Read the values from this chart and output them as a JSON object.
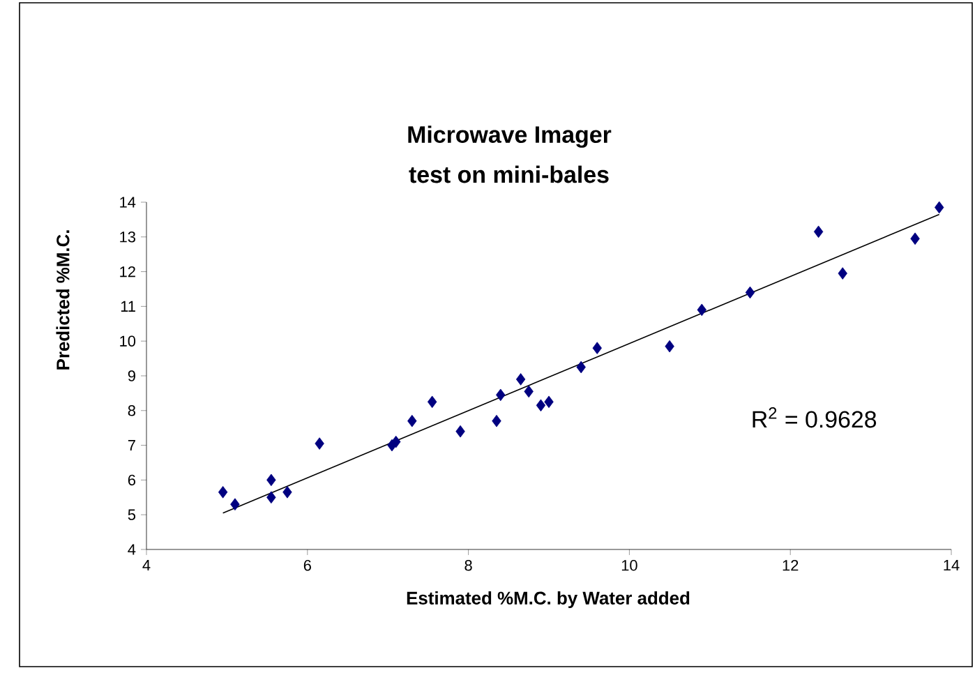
{
  "chart_data": {
    "type": "scatter",
    "title": "Microwave Imager",
    "subtitle": "test on mini-bales",
    "xlabel": "Estimated %M.C. by Water added",
    "ylabel": "Predicted %M.C.",
    "xlim": [
      4,
      14
    ],
    "xticks": [
      4,
      6,
      8,
      10,
      12,
      14
    ],
    "ylim": [
      4,
      14
    ],
    "yticks": [
      4,
      5,
      6,
      7,
      8,
      9,
      10,
      11,
      12,
      13,
      14
    ],
    "grid": false,
    "annotations": [
      "R$^{2}$ = 0.9628"
    ],
    "series": [
      {
        "marker": "diamond",
        "color": "#000080",
        "x": [
          4.95,
          5.1,
          5.55,
          5.55,
          5.75,
          6.15,
          7.05,
          7.1,
          7.3,
          7.55,
          7.9,
          8.35,
          8.4,
          8.65,
          8.75,
          8.9,
          9.0,
          9.4,
          9.6,
          10.5,
          10.9,
          11.5,
          12.35,
          12.65,
          13.55,
          13.85
        ],
        "values": [
          5.65,
          5.3,
          6.0,
          5.5,
          5.65,
          7.05,
          7.0,
          7.1,
          7.7,
          8.25,
          7.4,
          7.7,
          8.45,
          8.9,
          8.55,
          8.15,
          8.25,
          9.25,
          9.8,
          9.85,
          10.9,
          11.4,
          13.15,
          11.95,
          12.95,
          13.85
        ]
      },
      {
        "type": "line",
        "marker": "none",
        "color": "#000000",
        "x": [
          4.95,
          13.85
        ],
        "values": [
          5.05,
          13.65
        ]
      }
    ]
  }
}
